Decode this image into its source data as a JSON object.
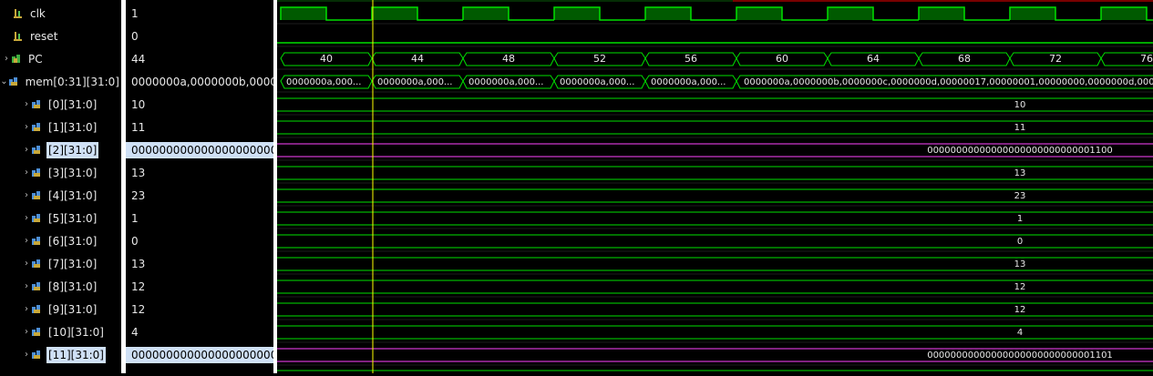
{
  "signals": [
    {
      "name": "clk",
      "value": "1",
      "icon": "bit-signal-icon",
      "expand": "none",
      "kind": "clock",
      "selected": false
    },
    {
      "name": "reset",
      "value": "0",
      "icon": "bit-signal-icon",
      "expand": "none",
      "kind": "low",
      "selected": false
    },
    {
      "name": "PC",
      "value": "44",
      "icon": "bus-signal-icon",
      "expand": "collapsed",
      "kind": "bus-pc",
      "selected": false
    },
    {
      "name": "mem[0:31][31:0]",
      "value": "0000000a,0000000b,00000",
      "icon": "array-signal-icon",
      "expand": "expanded",
      "kind": "bus-mem",
      "selected": false
    },
    {
      "name": "[0][31:0]",
      "value": "10",
      "icon": "array-signal-icon",
      "expand": "collapsed",
      "kind": "const",
      "wave_label": "10",
      "selected": false
    },
    {
      "name": "[1][31:0]",
      "value": "11",
      "icon": "array-signal-icon",
      "expand": "collapsed",
      "kind": "const",
      "wave_label": "11",
      "selected": false
    },
    {
      "name": "[2][31:0]",
      "value": "00000000000000000000000",
      "icon": "array-signal-icon",
      "expand": "collapsed",
      "kind": "const-selected",
      "wave_label": "00000000000000000000000000001100",
      "selected": true
    },
    {
      "name": "[3][31:0]",
      "value": "13",
      "icon": "array-signal-icon",
      "expand": "collapsed",
      "kind": "const",
      "wave_label": "13",
      "selected": false
    },
    {
      "name": "[4][31:0]",
      "value": "23",
      "icon": "array-signal-icon",
      "expand": "collapsed",
      "kind": "const",
      "wave_label": "23",
      "selected": false
    },
    {
      "name": "[5][31:0]",
      "value": "1",
      "icon": "array-signal-icon",
      "expand": "collapsed",
      "kind": "const",
      "wave_label": "1",
      "selected": false
    },
    {
      "name": "[6][31:0]",
      "value": "0",
      "icon": "array-signal-icon",
      "expand": "collapsed",
      "kind": "const",
      "wave_label": "0",
      "selected": false
    },
    {
      "name": "[7][31:0]",
      "value": "13",
      "icon": "array-signal-icon",
      "expand": "collapsed",
      "kind": "const",
      "wave_label": "13",
      "selected": false
    },
    {
      "name": "[8][31:0]",
      "value": "12",
      "icon": "array-signal-icon",
      "expand": "collapsed",
      "kind": "const",
      "wave_label": "12",
      "selected": false
    },
    {
      "name": "[9][31:0]",
      "value": "12",
      "icon": "array-signal-icon",
      "expand": "collapsed",
      "kind": "const",
      "wave_label": "12",
      "selected": false
    },
    {
      "name": "[10][31:0]",
      "value": "4",
      "icon": "array-signal-icon",
      "expand": "collapsed",
      "kind": "const",
      "wave_label": "4",
      "selected": false
    },
    {
      "name": "[11][31:0]",
      "value": "00000000000000000000000",
      "icon": "array-signal-icon",
      "expand": "collapsed",
      "kind": "const-selected",
      "wave_label": "00000000000000000000000000001101",
      "selected": true
    }
  ],
  "pc_segments": [
    "40",
    "44",
    "48",
    "52",
    "56",
    "60",
    "64",
    "68",
    "72",
    "76"
  ],
  "mem_segments": [
    "0000000a,000...",
    "0000000a,000...",
    "0000000a,000...",
    "0000000a,000...",
    "0000000a,000..."
  ],
  "mem_long_value": "0000000a,0000000b,0000000c,0000000d,00000017,00000001,00000000,0000000d,000",
  "colors": {
    "wave": "#00e000",
    "clock_fill": "#005a00",
    "selected_wave": "#ff44ff",
    "cursor": "#ffff00",
    "selection_bg": "#cfe0f5"
  }
}
